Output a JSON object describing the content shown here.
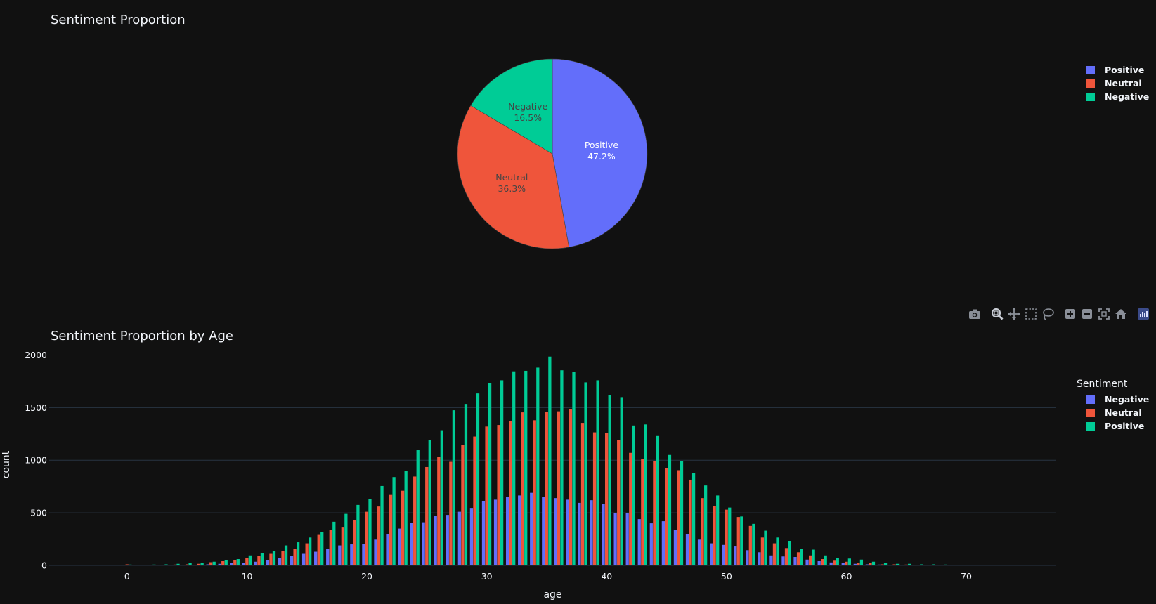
{
  "colors": {
    "Positive": "#636efa",
    "Neutral": "#ef553b",
    "Negative": "#00cc96",
    "bar_Negative": "#636efa",
    "bar_Neutral": "#ef553b",
    "bar_Positive": "#00cc96",
    "grid": "#283442",
    "background": "#111111",
    "text": "#f2f5fa"
  },
  "modebar": {
    "icons": [
      "camera-icon",
      "zoom-icon",
      "pan-icon",
      "box-select-icon",
      "lasso-icon",
      "zoom-in-icon",
      "zoom-out-icon",
      "autoscale-icon",
      "reset-axes-icon",
      "plotly-logo-icon"
    ]
  },
  "chart_data": [
    {
      "type": "pie",
      "title": "Sentiment Proportion",
      "labels": [
        "Positive",
        "Neutral",
        "Negative"
      ],
      "values": [
        47.2,
        36.3,
        16.5
      ],
      "text_labels": [
        "47.2%",
        "36.3%",
        "16.5%"
      ],
      "legend": [
        "Positive",
        "Neutral",
        "Negative"
      ],
      "legend_position": "top-right"
    },
    {
      "type": "bar",
      "title": "Sentiment Proportion by Age",
      "xlabel": "age",
      "ylabel": "count",
      "xlim": [
        -6.5,
        77.5
      ],
      "ylim": [
        0,
        2050
      ],
      "xticks": [
        0,
        10,
        20,
        30,
        40,
        50,
        60,
        70
      ],
      "yticks": [
        0,
        500,
        1000,
        1500,
        2000
      ],
      "legend_title": "Sentiment",
      "legend_position": "top-right",
      "grid": true,
      "x": [
        -6,
        -5,
        -4,
        -3,
        -2,
        -1,
        0,
        1,
        2,
        3,
        4,
        5,
        6,
        7,
        8,
        9,
        10,
        11,
        12,
        13,
        14,
        15,
        16,
        17,
        18,
        19,
        20,
        21,
        22,
        23,
        24,
        25,
        26,
        27,
        28,
        29,
        30,
        31,
        32,
        33,
        34,
        35,
        36,
        37,
        38,
        39,
        40,
        41,
        42,
        43,
        44,
        45,
        46,
        47,
        48,
        49,
        50,
        51,
        52,
        53,
        54,
        55,
        56,
        57,
        58,
        59,
        60,
        61,
        62,
        63,
        64,
        65,
        66,
        67,
        68,
        69,
        70,
        71,
        72,
        73,
        74,
        75,
        76,
        77
      ],
      "series": [
        {
          "name": "Negative",
          "values": [
            2,
            1,
            2,
            1,
            2,
            1,
            3,
            2,
            3,
            3,
            4,
            5,
            6,
            10,
            15,
            20,
            25,
            35,
            50,
            70,
            90,
            110,
            130,
            160,
            190,
            200,
            205,
            245,
            300,
            350,
            405,
            410,
            470,
            480,
            510,
            540,
            610,
            625,
            650,
            665,
            690,
            650,
            640,
            625,
            595,
            620,
            585,
            500,
            500,
            440,
            400,
            420,
            340,
            295,
            245,
            210,
            195,
            180,
            145,
            125,
            95,
            85,
            80,
            55,
            40,
            28,
            20,
            15,
            10,
            8,
            6,
            5,
            4,
            3,
            3,
            2,
            2,
            2,
            1,
            1,
            1,
            1,
            1,
            1
          ]
        },
        {
          "name": "Neutral",
          "values": [
            3,
            2,
            3,
            2,
            3,
            2,
            10,
            5,
            5,
            6,
            8,
            10,
            15,
            30,
            40,
            50,
            70,
            90,
            110,
            140,
            160,
            210,
            290,
            340,
            360,
            430,
            510,
            560,
            670,
            710,
            845,
            935,
            1030,
            985,
            1145,
            1225,
            1320,
            1335,
            1370,
            1455,
            1380,
            1460,
            1465,
            1485,
            1355,
            1265,
            1260,
            1190,
            1070,
            1010,
            990,
            925,
            905,
            815,
            640,
            565,
            530,
            460,
            375,
            265,
            210,
            165,
            125,
            95,
            60,
            45,
            35,
            25,
            20,
            10,
            10,
            8,
            6,
            5,
            5,
            4,
            3,
            3,
            3,
            2,
            2,
            2,
            2,
            2
          ]
        },
        {
          "name": "Positive",
          "values": [
            4,
            3,
            4,
            3,
            4,
            3,
            8,
            6,
            8,
            10,
            15,
            25,
            25,
            35,
            50,
            60,
            95,
            115,
            140,
            190,
            220,
            265,
            320,
            415,
            490,
            575,
            630,
            755,
            840,
            895,
            1095,
            1190,
            1285,
            1475,
            1535,
            1635,
            1730,
            1760,
            1845,
            1850,
            1880,
            1985,
            1855,
            1840,
            1740,
            1760,
            1620,
            1600,
            1330,
            1340,
            1230,
            1050,
            995,
            880,
            760,
            665,
            550,
            465,
            395,
            330,
            265,
            230,
            160,
            150,
            95,
            70,
            65,
            55,
            35,
            25,
            15,
            15,
            10,
            10,
            8,
            6,
            5,
            5,
            4,
            3,
            3,
            3,
            3,
            2
          ]
        }
      ]
    }
  ]
}
